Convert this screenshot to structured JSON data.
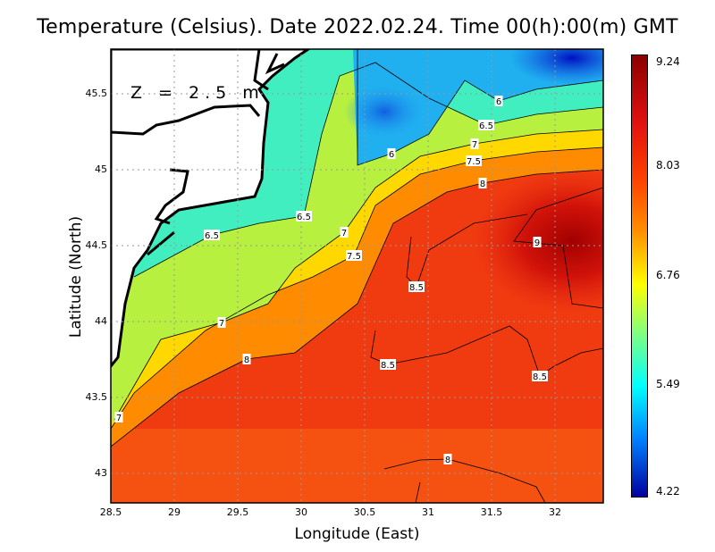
{
  "title": "Temperature (Celsius). Date 2022.02.24. Time 00(h):00(m) GMT",
  "depth_label": "Z = 2.5 m",
  "xlabel": "Longitude (East)",
  "ylabel": "Latitude (North)",
  "x_ticks": [
    "28.5",
    "29",
    "29.5",
    "30",
    "30.5",
    "31",
    "31.5",
    "32"
  ],
  "y_ticks": [
    "45.5",
    "45",
    "44.5",
    "44",
    "43.5",
    "43"
  ],
  "colorbar_ticks": [
    "9.24",
    "8.03",
    "6.76",
    "5.49",
    "4.22"
  ],
  "contour_labels": [
    "6",
    "6.5",
    "7",
    "7.5",
    "8",
    "6",
    "6.5",
    "6.5",
    "7",
    "7.5",
    "9",
    "8.5",
    "7",
    "8",
    "8.5",
    "8.5",
    "7",
    "8"
  ]
}
